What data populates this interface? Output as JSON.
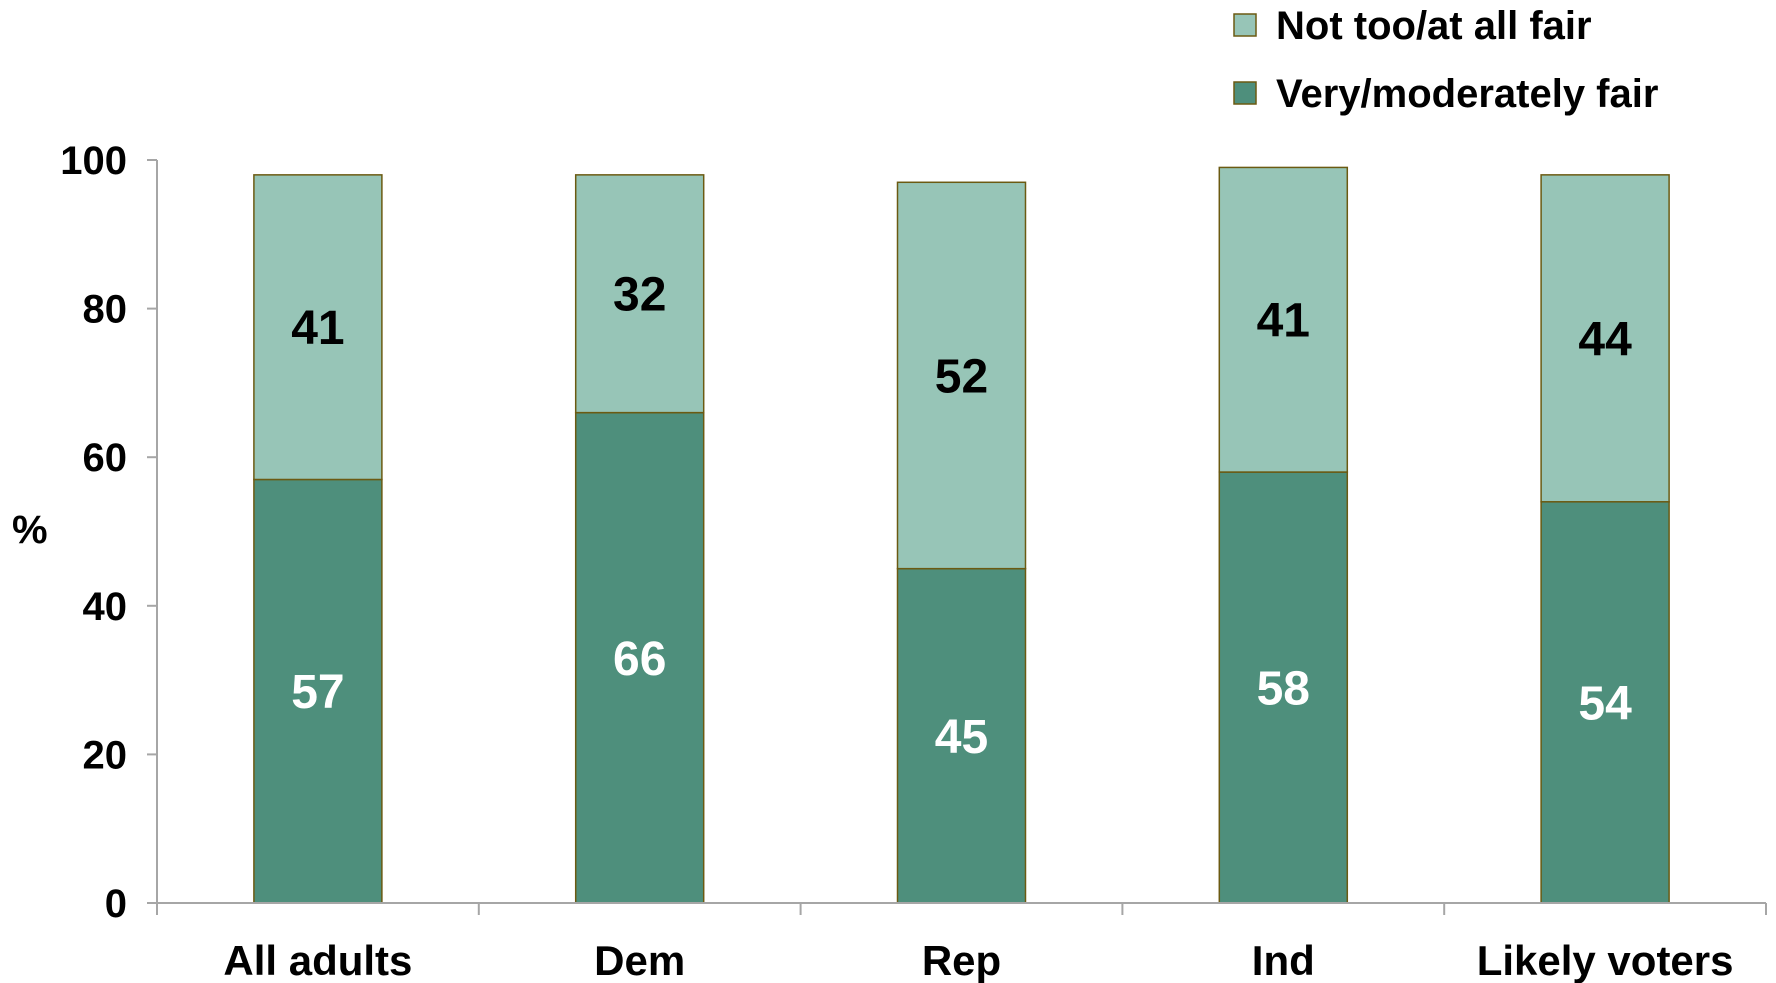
{
  "chart_data": {
    "type": "bar",
    "stacked": true,
    "categories": [
      "All adults",
      "Dem",
      "Rep",
      "Ind",
      "Likely voters"
    ],
    "series": [
      {
        "name": "Very/moderately fair",
        "values": [
          57,
          66,
          45,
          58,
          54
        ],
        "color": "#4E8F7C",
        "label_color": "#ffffff"
      },
      {
        "name": "Not too/at all fair",
        "values": [
          41,
          32,
          52,
          41,
          44
        ],
        "color": "#97C5B7",
        "label_color": "#000000"
      }
    ],
    "title": "",
    "xlabel": "",
    "ylabel": "%",
    "ylim": [
      0,
      100
    ],
    "yticks": [
      0,
      20,
      40,
      60,
      80,
      100
    ],
    "grid": false,
    "legend_position": "top-right",
    "bar_edge_color": "#6B5A12",
    "axis_color": "#A6A6A6"
  }
}
